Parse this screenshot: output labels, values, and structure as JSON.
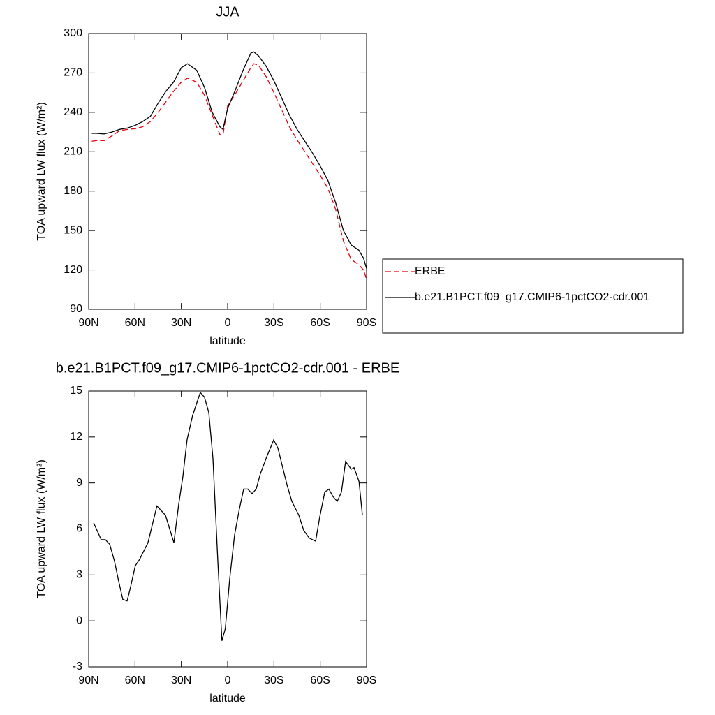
{
  "chart_data": [
    {
      "type": "line",
      "title": "JJA",
      "xlabel": "latitude",
      "ylabel": "TOA upward LW flux (W/m²)",
      "legend": "right",
      "x": [
        88,
        85,
        80,
        75,
        70,
        65,
        60,
        55,
        50,
        45,
        40,
        35,
        30,
        26,
        20,
        15,
        10,
        5,
        3,
        0,
        -5,
        -10,
        -15,
        -17,
        -20,
        -25,
        -30,
        -35,
        -40,
        -45,
        -50,
        -55,
        -60,
        -65,
        -70,
        -75,
        -80,
        -85,
        -88,
        -90
      ],
      "series": [
        {
          "name": "ERBE",
          "color": "#e8000b",
          "dash": true,
          "values": [
            218,
            218.5,
            218.5,
            222,
            226,
            227,
            227.5,
            229,
            233,
            240,
            248,
            256,
            263,
            266,
            263,
            253,
            238,
            223,
            223,
            245,
            254,
            264,
            274,
            277,
            276,
            267,
            255,
            242,
            229,
            219,
            210,
            201,
            192,
            182,
            166,
            142,
            128,
            124,
            120,
            113
          ]
        },
        {
          "name": "b.e21.B1PCT.f09_g17.CMIP6-1pctCO2-cdr.001",
          "color": "#000000",
          "dash": false,
          "values": [
            224,
            224,
            223.5,
            225,
            227,
            228,
            230,
            233,
            237,
            247,
            256,
            263,
            274,
            277,
            272,
            259,
            240,
            229,
            227,
            243,
            257,
            272,
            285,
            286,
            283,
            275,
            264,
            251,
            238,
            227,
            218,
            209,
            199,
            188,
            171,
            150,
            139,
            135,
            129,
            121
          ]
        }
      ],
      "xlim": [
        90,
        -90
      ],
      "xticks": [
        {
          "value": 90,
          "label": "90N"
        },
        {
          "value": 60,
          "label": "60N"
        },
        {
          "value": 30,
          "label": "30N"
        },
        0,
        {
          "value": -30,
          "label": "30S"
        },
        {
          "value": -60,
          "label": "60S"
        },
        {
          "value": -90,
          "label": "90S"
        }
      ],
      "ylim": [
        90,
        300
      ],
      "yticks": [
        90,
        120,
        150,
        180,
        210,
        240,
        270,
        300
      ]
    },
    {
      "type": "line",
      "title": "b.e21.B1PCT.f09_g17.CMIP6-1pctCO2-cdr.001 - ERBE",
      "xlabel": "latitude",
      "ylabel": "TOA upward LW flux (W/m²)",
      "x": [
        86.8,
        81.9,
        79.2,
        76.4,
        73.3,
        70.6,
        67.9,
        65.1,
        62.9,
        59.8,
        57.1,
        51.6,
        45.8,
        40.3,
        34.8,
        31.7,
        29.0,
        26.3,
        22.7,
        17.7,
        15.0,
        12.2,
        9.5,
        6.4,
        3.7,
        1.5,
        -1.4,
        -4.5,
        -7.6,
        -10.4,
        -13.1,
        -15.8,
        -18.5,
        -21.2,
        -25.3,
        -29.8,
        -32.5,
        -35.2,
        -38.4,
        -41.6,
        -46.1,
        -49.3,
        -52.9,
        -57.0,
        -59.7,
        -62.9,
        -65.6,
        -68.3,
        -71.0,
        -73.7,
        -76.4,
        -80.1,
        -81.9,
        -85.1,
        -87.3
      ],
      "series": [
        {
          "name": "b.e21.B1PCT.f09_g17.CMIP6-1pctCO2-cdr.001 - ERBE",
          "color": "#000000",
          "dash": false,
          "values": [
            6.4,
            5.3,
            5.3,
            5.0,
            3.9,
            2.6,
            1.4,
            1.3,
            2.2,
            3.6,
            4.0,
            5.1,
            7.5,
            6.9,
            5.1,
            7.6,
            9.4,
            11.8,
            13.4,
            14.9,
            14.6,
            13.6,
            10.6,
            4.0,
            -1.3,
            -0.5,
            2.8,
            5.6,
            7.3,
            8.6,
            8.6,
            8.3,
            8.6,
            9.6,
            10.7,
            11.8,
            11.3,
            10.2,
            8.9,
            7.8,
            6.9,
            5.9,
            5.4,
            5.2,
            6.8,
            8.4,
            8.6,
            8.1,
            7.8,
            8.4,
            10.4,
            9.9,
            10.0,
            9.1,
            6.9
          ]
        }
      ],
      "xlim": [
        90,
        -90
      ],
      "xticks": [
        {
          "value": 90,
          "label": "90N"
        },
        {
          "value": 60,
          "label": "60N"
        },
        {
          "value": 30,
          "label": "30N"
        },
        0,
        {
          "value": -30,
          "label": "30S"
        },
        {
          "value": -60,
          "label": "60S"
        },
        {
          "value": -90,
          "label": "90S"
        }
      ],
      "ylim": [
        -3,
        15
      ],
      "yticks": [
        -3,
        0,
        3,
        6,
        9,
        12,
        15
      ]
    }
  ]
}
